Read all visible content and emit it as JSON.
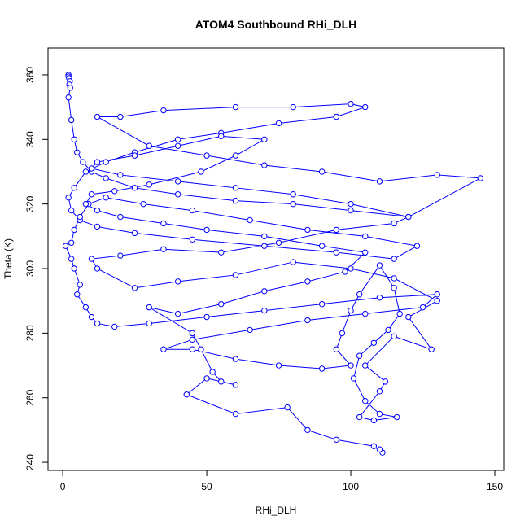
{
  "chart_data": {
    "type": "line",
    "markers": true,
    "title": "ATOM4 Southbound RHi_DLH",
    "xlabel": "RHi_DLH",
    "ylabel": "Theta (K)",
    "color": "#0000ff",
    "x": [
      2,
      2,
      2.2,
      2.5,
      2.3,
      2.6,
      2,
      3,
      4,
      5,
      7,
      10,
      15,
      25,
      40,
      60,
      80,
      100,
      120,
      145,
      130,
      110,
      90,
      70,
      50,
      30,
      12,
      20,
      35,
      60,
      80,
      100,
      105,
      95,
      75,
      55,
      40,
      25,
      15,
      8,
      4,
      2,
      3,
      6,
      12,
      25,
      45,
      70,
      95,
      115,
      123,
      105,
      85,
      65,
      45,
      28,
      15,
      9,
      6,
      4,
      3,
      1,
      3,
      4,
      6,
      5,
      8,
      10,
      12,
      18,
      30,
      50,
      70,
      90,
      110,
      130,
      125,
      105,
      85,
      65,
      45,
      35,
      45,
      60,
      75,
      90,
      100,
      95,
      97,
      100,
      103,
      110,
      115,
      117,
      113,
      108,
      103,
      101,
      105,
      110,
      116,
      108,
      103,
      110,
      112,
      105,
      115,
      128,
      120,
      130,
      115,
      100,
      80,
      60,
      40,
      25,
      12,
      10,
      20,
      35,
      55,
      75,
      95,
      115,
      120,
      100,
      80,
      60,
      40,
      20,
      10,
      12,
      25,
      40,
      55,
      70,
      60,
      48,
      30,
      18,
      10,
      8,
      12,
      20,
      35,
      50,
      70,
      90,
      105,
      98,
      85,
      70,
      55,
      40,
      30,
      45,
      48,
      52,
      55,
      60,
      50,
      43,
      60,
      78,
      85,
      95,
      108,
      111,
      110
    ],
    "values": [
      360,
      359.5,
      359,
      358,
      357,
      356,
      353,
      346,
      340,
      336,
      333,
      330,
      328,
      325,
      323,
      321,
      320,
      318,
      316,
      328,
      329,
      327,
      330,
      332,
      335,
      338,
      347,
      347,
      349,
      350,
      350,
      351,
      350,
      347,
      345,
      342,
      340,
      336,
      333,
      330,
      325,
      322,
      318,
      315,
      313,
      311,
      309,
      307,
      305,
      303,
      307,
      310,
      312,
      315,
      318,
      320,
      322,
      320,
      316,
      312,
      308,
      307,
      303,
      300,
      295,
      292,
      288,
      285,
      283,
      282,
      283,
      285,
      287,
      289,
      291,
      292,
      288,
      286,
      284,
      281,
      278,
      275,
      275,
      272,
      270,
      269,
      270,
      275,
      280,
      287,
      292,
      301,
      294,
      286,
      281,
      277,
      273,
      266,
      259,
      255,
      254,
      253,
      254,
      262,
      265,
      270,
      279,
      275,
      285,
      290,
      297,
      300,
      302,
      298,
      296,
      294,
      300,
      303,
      304,
      306,
      305,
      308,
      312,
      314,
      316,
      320,
      323,
      325,
      327,
      329,
      331,
      333,
      335,
      338,
      341,
      340,
      335,
      330,
      326,
      324,
      323,
      320,
      318,
      316,
      314,
      312,
      310,
      307,
      305,
      299,
      296,
      293,
      289,
      286,
      288,
      280,
      275,
      268,
      265,
      264,
      266,
      261,
      255,
      257,
      250,
      247,
      245,
      243,
      244
    ],
    "xlim": [
      -5.1,
      153.1
    ],
    "ylim": [
      237.5,
      368.3
    ],
    "xticks": [
      0,
      50,
      100,
      150
    ],
    "yticks": [
      240,
      260,
      280,
      300,
      320,
      340,
      360
    ]
  }
}
